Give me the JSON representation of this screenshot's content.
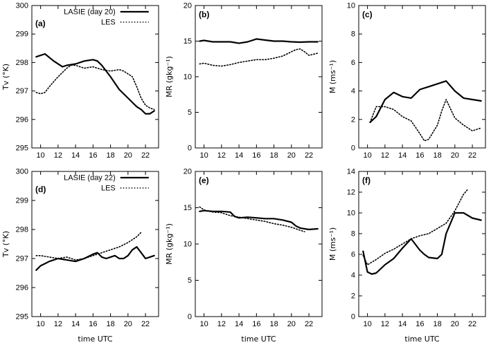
{
  "figure": {
    "background": "#ffffff",
    "line_color": "#000000",
    "x_axis_label": "time UTC"
  },
  "chart_data": [
    {
      "panel": "(a)",
      "type": "line",
      "ylabel": "Tv (°K)",
      "xlabel": "",
      "xlim": [
        9,
        23.5
      ],
      "ylim": [
        295,
        300
      ],
      "xticks": [
        10,
        12,
        14,
        16,
        18,
        20,
        22
      ],
      "yticks": [
        295,
        296,
        297,
        298,
        299,
        300
      ],
      "show_legend": true,
      "legend": [
        "LASIE (day 20)",
        "LES"
      ],
      "series": [
        {
          "name": "LASIE (day 20)",
          "style": "solid",
          "x": [
            9.5,
            10.5,
            11.5,
            12.5,
            13,
            14,
            15,
            16,
            16.5,
            17,
            18,
            19,
            20,
            20.5,
            21,
            21.5,
            22,
            22.5,
            23
          ],
          "y": [
            298.2,
            298.3,
            298.05,
            297.85,
            297.9,
            297.95,
            298.05,
            298.1,
            298.05,
            297.9,
            297.5,
            297.05,
            296.75,
            296.6,
            296.45,
            296.35,
            296.2,
            296.2,
            296.3
          ]
        },
        {
          "name": "LES",
          "style": "dotted",
          "x": [
            9.5,
            10,
            10.5,
            11,
            12,
            13,
            13.5,
            14,
            15,
            16,
            17,
            18,
            19,
            19.5,
            20,
            20.5,
            21,
            21.5,
            22,
            22.5,
            23
          ],
          "y": [
            296.95,
            296.9,
            296.95,
            297.15,
            297.5,
            297.8,
            297.9,
            297.9,
            297.8,
            297.85,
            297.75,
            297.7,
            297.75,
            297.7,
            297.6,
            297.5,
            297.15,
            296.75,
            296.5,
            296.4,
            296.35
          ]
        }
      ]
    },
    {
      "panel": "(b)",
      "type": "line",
      "ylabel": "MR (gkg⁻¹)",
      "xlabel": "",
      "xlim": [
        9,
        23.5
      ],
      "ylim": [
        0,
        20
      ],
      "xticks": [
        10,
        12,
        14,
        16,
        18,
        20,
        22
      ],
      "yticks": [
        0,
        5,
        10,
        15,
        20
      ],
      "show_legend": false,
      "series": [
        {
          "name": "LASIE (day 20)",
          "style": "solid",
          "x": [
            9.5,
            10,
            11,
            12,
            13,
            14,
            15,
            16,
            17,
            18,
            19,
            20,
            21,
            22,
            23
          ],
          "y": [
            15.0,
            15.1,
            14.9,
            14.9,
            14.9,
            14.7,
            14.9,
            15.3,
            15.15,
            15.0,
            15.0,
            14.9,
            14.85,
            14.9,
            14.9
          ]
        },
        {
          "name": "LES",
          "style": "dotted",
          "x": [
            9.5,
            10,
            11,
            12,
            13,
            14,
            15,
            16,
            17,
            18,
            19,
            20,
            20.5,
            21,
            21.5,
            22,
            23
          ],
          "y": [
            11.8,
            11.9,
            11.6,
            11.5,
            11.7,
            12.0,
            12.2,
            12.4,
            12.4,
            12.6,
            12.9,
            13.5,
            13.8,
            13.9,
            13.5,
            13.0,
            13.3
          ]
        }
      ]
    },
    {
      "panel": "(c)",
      "type": "line",
      "ylabel": "M (ms⁻¹)",
      "xlabel": "",
      "xlim": [
        9,
        23.5
      ],
      "ylim": [
        0,
        10
      ],
      "xticks": [
        10,
        12,
        14,
        16,
        18,
        20,
        22
      ],
      "yticks": [
        0,
        2,
        4,
        6,
        8,
        10
      ],
      "show_legend": false,
      "series": [
        {
          "name": "LASIE (day 20)",
          "style": "solid",
          "x": [
            10.3,
            11,
            12,
            13,
            14,
            15,
            16,
            17,
            18,
            19,
            20,
            21,
            22,
            23
          ],
          "y": [
            1.8,
            2.2,
            3.4,
            3.9,
            3.6,
            3.5,
            4.1,
            4.3,
            4.5,
            4.7,
            4.0,
            3.5,
            3.4,
            3.3
          ]
        },
        {
          "name": "LES",
          "style": "dotted",
          "x": [
            10.3,
            11,
            12,
            13,
            14,
            15,
            16,
            16.5,
            17,
            18,
            18.5,
            19,
            20,
            21,
            22,
            22.5,
            23
          ],
          "y": [
            1.8,
            2.9,
            2.9,
            2.7,
            2.2,
            1.9,
            1.0,
            0.5,
            0.6,
            1.6,
            2.6,
            3.4,
            2.1,
            1.6,
            1.2,
            1.3,
            1.4
          ]
        }
      ]
    },
    {
      "panel": "(d)",
      "type": "line",
      "ylabel": "Tv (°K)",
      "xlabel": "time UTC",
      "xlim": [
        9,
        23.5
      ],
      "ylim": [
        295,
        300
      ],
      "xticks": [
        10,
        12,
        14,
        16,
        18,
        20,
        22
      ],
      "yticks": [
        295,
        296,
        297,
        298,
        299,
        300
      ],
      "show_legend": true,
      "legend": [
        "LASIE (day 22)",
        "LES"
      ],
      "series": [
        {
          "name": "LASIE (day 22)",
          "style": "solid",
          "x": [
            9.5,
            10,
            11,
            12,
            13,
            14,
            15,
            16,
            16.5,
            17,
            17.5,
            18,
            18.5,
            19,
            19.5,
            20,
            20.5,
            21,
            21.5,
            22,
            22.5,
            23
          ],
          "y": [
            296.6,
            296.75,
            296.9,
            297.0,
            296.95,
            296.9,
            297.0,
            297.15,
            297.2,
            297.05,
            297.0,
            297.05,
            297.1,
            297.0,
            297.0,
            297.1,
            297.3,
            297.4,
            297.2,
            297.0,
            297.05,
            297.1
          ]
        },
        {
          "name": "LES",
          "style": "dotted",
          "x": [
            9.5,
            10,
            11,
            12,
            13,
            14,
            15,
            16,
            17,
            18,
            19,
            20,
            20.5,
            21,
            21.5
          ],
          "y": [
            297.1,
            297.1,
            297.05,
            297.0,
            297.05,
            296.95,
            297.0,
            297.1,
            297.2,
            297.3,
            297.4,
            297.55,
            297.65,
            297.75,
            297.9
          ]
        }
      ]
    },
    {
      "panel": "(e)",
      "type": "line",
      "ylabel": "MR (gkg⁻¹)",
      "xlabel": "time UTC",
      "xlim": [
        9,
        23.5
      ],
      "ylim": [
        0,
        20
      ],
      "xticks": [
        10,
        12,
        14,
        16,
        18,
        20,
        22
      ],
      "yticks": [
        0,
        5,
        10,
        15,
        20
      ],
      "show_legend": false,
      "series": [
        {
          "name": "LASIE (day 22)",
          "style": "solid",
          "x": [
            9.5,
            10,
            11,
            12,
            13,
            13.5,
            14,
            15,
            16,
            17,
            18,
            19,
            20,
            20.5,
            21,
            22,
            23
          ],
          "y": [
            14.5,
            14.6,
            14.5,
            14.5,
            14.4,
            13.8,
            13.6,
            13.7,
            13.6,
            13.5,
            13.5,
            13.3,
            13.0,
            12.5,
            12.2,
            12.0,
            12.1
          ]
        },
        {
          "name": "LES",
          "style": "dotted",
          "x": [
            9.5,
            10,
            11,
            12,
            13,
            14,
            15,
            16,
            17,
            18,
            19,
            20,
            21,
            21.5
          ],
          "y": [
            15.1,
            14.7,
            14.4,
            14.3,
            13.9,
            13.7,
            13.5,
            13.3,
            13.1,
            12.8,
            12.6,
            12.3,
            11.9,
            11.7
          ]
        }
      ]
    },
    {
      "panel": "(f)",
      "type": "line",
      "ylabel": "M (ms⁻¹)",
      "xlabel": "time UTC",
      "xlim": [
        9,
        23.5
      ],
      "ylim": [
        0,
        14
      ],
      "xticks": [
        10,
        12,
        14,
        16,
        18,
        20,
        22
      ],
      "yticks": [
        0,
        2,
        4,
        6,
        8,
        10,
        12,
        14
      ],
      "show_legend": false,
      "series": [
        {
          "name": "LASIE (day 22)",
          "style": "solid",
          "x": [
            9.5,
            10,
            10.5,
            11,
            12,
            13,
            14,
            15,
            16,
            16.5,
            17,
            18,
            18.5,
            19,
            20,
            21,
            22,
            23
          ],
          "y": [
            6.3,
            4.3,
            4.1,
            4.2,
            5.0,
            5.6,
            6.6,
            7.5,
            6.4,
            6.0,
            5.7,
            5.6,
            6.0,
            8.0,
            10.0,
            10.0,
            9.5,
            9.3
          ]
        },
        {
          "name": "LES",
          "style": "dotted",
          "x": [
            9.5,
            10,
            11,
            12,
            13,
            14,
            15,
            16,
            17,
            18,
            19,
            20,
            20.5,
            21,
            21.5
          ],
          "y": [
            5.9,
            5.0,
            5.5,
            6.1,
            6.5,
            7.0,
            7.5,
            7.8,
            8.0,
            8.5,
            9.0,
            10.2,
            11.0,
            11.8,
            12.3
          ]
        }
      ]
    }
  ]
}
